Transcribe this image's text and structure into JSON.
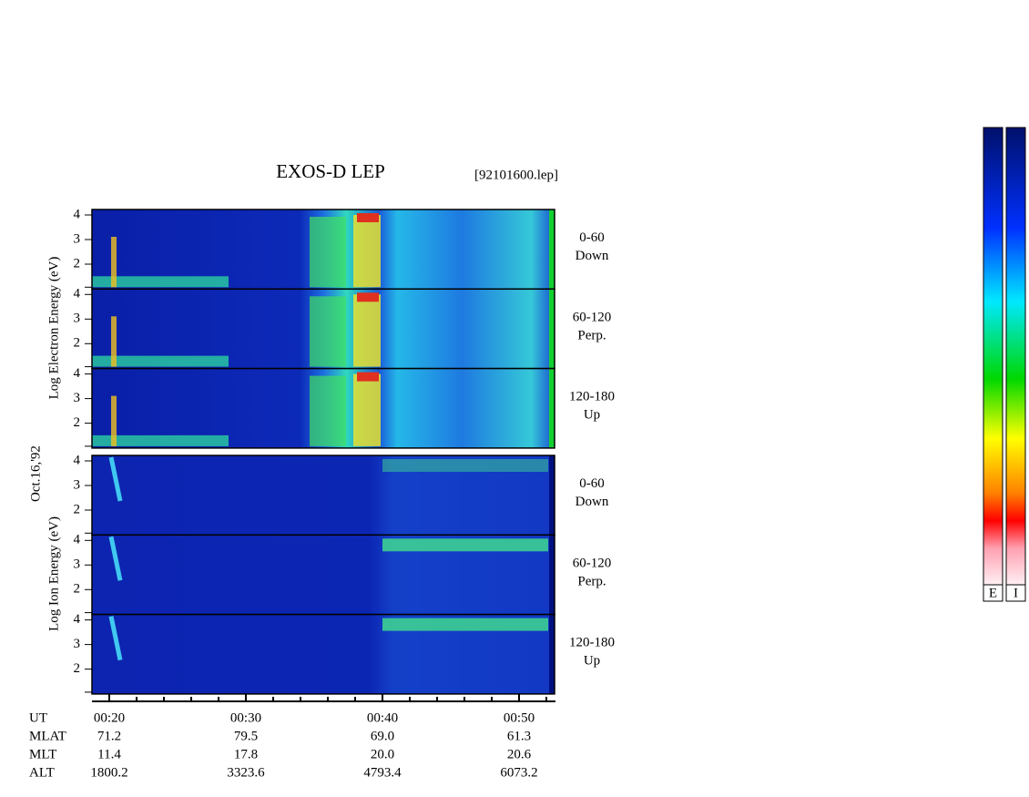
{
  "title": "EXOS-D LEP",
  "file": "[92101600.lep]",
  "date": "Oct.16,'92",
  "electron": {
    "axis_label": "Log Electron Energy (eV)",
    "panels": [
      {
        "angle": "0-60",
        "direction": "Down"
      },
      {
        "angle": "60-120",
        "direction": "Perp."
      },
      {
        "angle": "120-180",
        "direction": "Up"
      }
    ]
  },
  "ion": {
    "axis_label": "Log Ion Energy (eV)",
    "panels": [
      {
        "angle": "0-60",
        "direction": "Down"
      },
      {
        "angle": "60-120",
        "direction": "Perp."
      },
      {
        "angle": "120-180",
        "direction": "Up"
      }
    ]
  },
  "yticks": [
    "4",
    "3",
    "2"
  ],
  "ephemeris": [
    {
      "label": "UT",
      "values": [
        "00:20",
        "00:30",
        "00:40",
        "00:50"
      ]
    },
    {
      "label": "MLAT",
      "values": [
        "71.2",
        "79.5",
        "69.0",
        "61.3"
      ]
    },
    {
      "label": "MLT",
      "values": [
        "11.4",
        "17.8",
        "20.0",
        "20.6"
      ]
    },
    {
      "label": "ALT",
      "values": [
        "1800.2",
        "3323.6",
        "4793.4",
        "6073.2"
      ]
    }
  ],
  "colorbars": [
    "E",
    "I"
  ]
}
